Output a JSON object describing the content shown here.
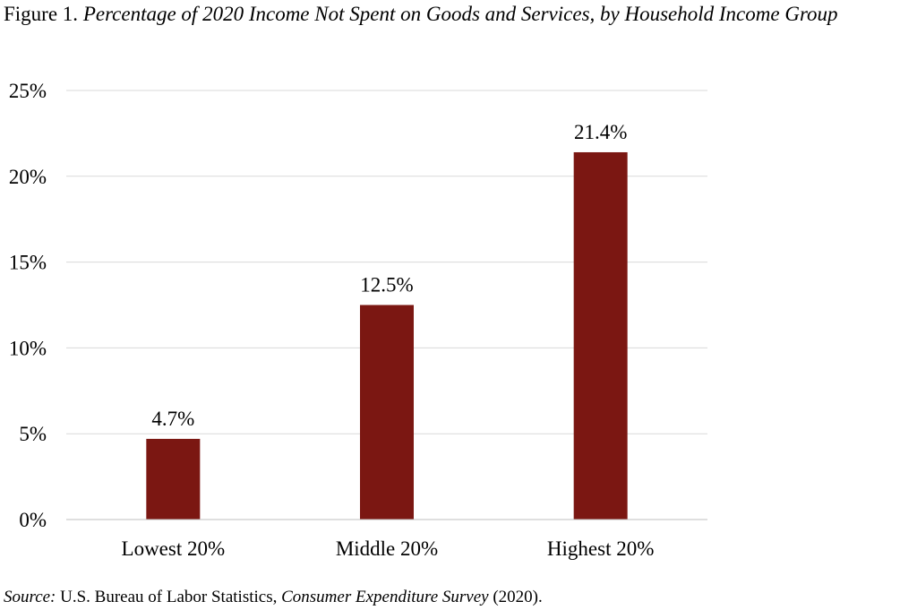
{
  "figure": {
    "label": "Figure 1.",
    "title": "Percentage of 2020 Income Not Spent on Goods and Services, by Household Income Group"
  },
  "source": {
    "label": "Source:",
    "org": "U.S. Bureau of Labor Statistics,",
    "survey": "Consumer Expenditure Survey",
    "year": "(2020)."
  },
  "chart_data": {
    "type": "bar",
    "title": "Percentage of 2020 Income Not Spent on Goods and Services, by Household Income Group",
    "categories": [
      "Lowest 20%",
      "Middle 20%",
      "Highest 20%"
    ],
    "values": [
      4.7,
      12.5,
      21.4
    ],
    "data_labels": [
      "4.7%",
      "12.5%",
      "21.4%"
    ],
    "ylim": [
      0,
      25
    ],
    "yticks": [
      0,
      5,
      10,
      15,
      20,
      25
    ],
    "ytick_labels": [
      "0%",
      "5%",
      "10%",
      "15%",
      "20%",
      "25%"
    ],
    "xlabel": "",
    "ylabel": "",
    "grid": true,
    "legend": false,
    "bar_color": "#7B1712",
    "grid_color": "#d9d9d9"
  }
}
